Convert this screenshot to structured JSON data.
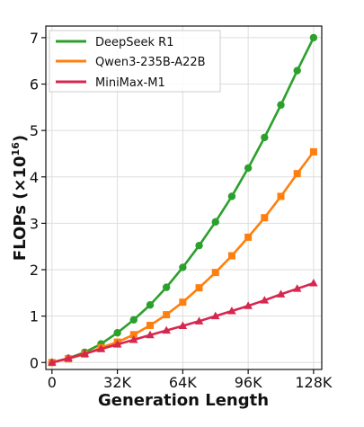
{
  "chart_data": {
    "type": "line",
    "title": "",
    "xlabel": "Generation Length",
    "ylabel": "FLOPs (×10",
    "ylabel_exponent": "16",
    "ylabel_close": ")",
    "xlim": [
      -3,
      132
    ],
    "ylim": [
      -0.15,
      7.25
    ],
    "x_ticks": [
      0,
      32,
      64,
      96,
      128
    ],
    "x_tick_labels": [
      "0",
      "32K",
      "64K",
      "96K",
      "128K"
    ],
    "y_ticks": [
      0,
      1,
      2,
      3,
      4,
      5,
      6,
      7
    ],
    "y_tick_labels": [
      "0",
      "1",
      "2",
      "3",
      "4",
      "5",
      "6",
      "7"
    ],
    "grid": true,
    "legend_position": "top-left",
    "x": [
      0,
      8,
      16,
      24,
      32,
      40,
      48,
      56,
      64,
      72,
      80,
      88,
      96,
      104,
      112,
      120,
      128
    ],
    "series": [
      {
        "name": "DeepSeek R1",
        "color": "#2ca02c",
        "marker": "circle",
        "values": [
          0,
          0.09,
          0.22,
          0.4,
          0.64,
          0.92,
          1.24,
          1.62,
          2.05,
          2.52,
          3.03,
          3.58,
          4.19,
          4.85,
          5.55,
          6.29,
          7.0
        ]
      },
      {
        "name": "Qwen3-235B-A22B",
        "color": "#ff7f0e",
        "marker": "square",
        "values": [
          0,
          0.08,
          0.18,
          0.32,
          0.44,
          0.6,
          0.8,
          1.03,
          1.3,
          1.61,
          1.94,
          2.3,
          2.7,
          3.12,
          3.58,
          4.07,
          4.54
        ]
      },
      {
        "name": "MiniMax-M1",
        "color": "#d62750",
        "marker": "triangle",
        "values": [
          0,
          0.09,
          0.19,
          0.29,
          0.39,
          0.49,
          0.59,
          0.69,
          0.79,
          0.89,
          1.0,
          1.11,
          1.22,
          1.34,
          1.47,
          1.59,
          1.71
        ]
      }
    ]
  }
}
